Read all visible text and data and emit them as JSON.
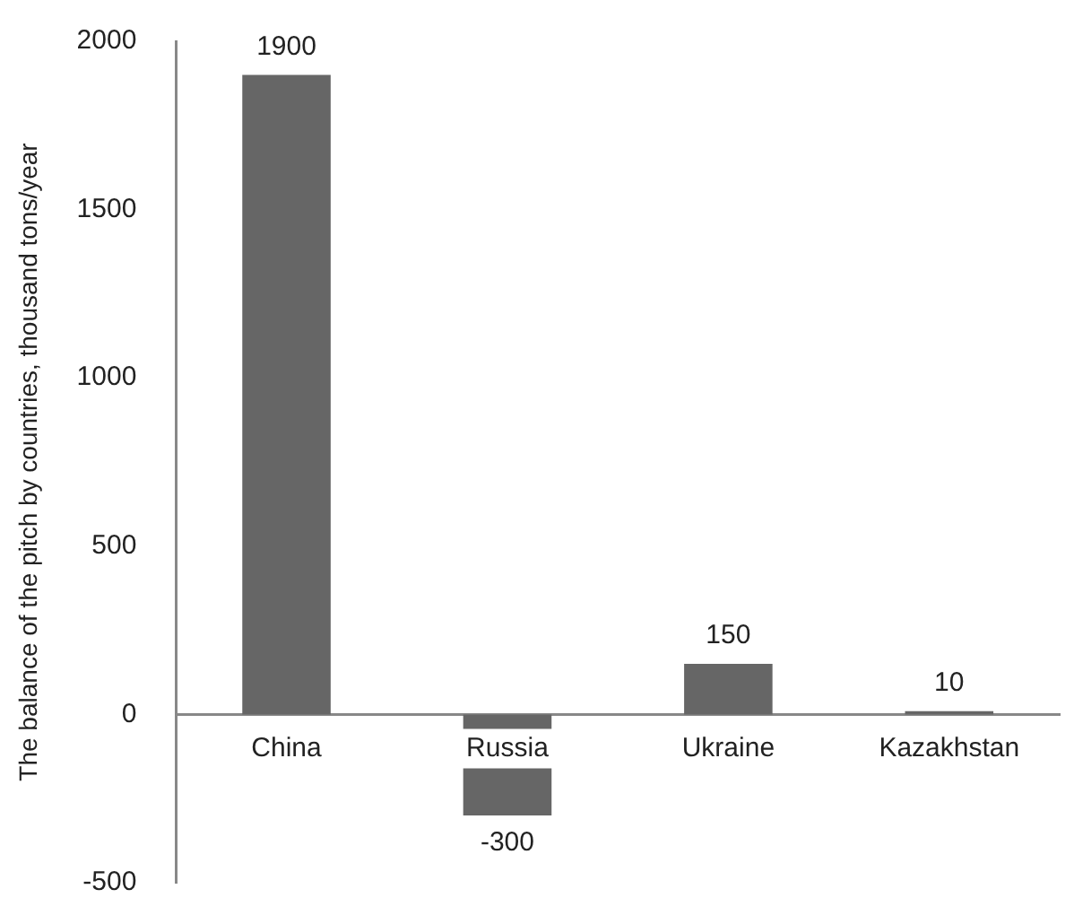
{
  "chart_data": {
    "type": "bar",
    "ylabel": "The balance of the pitch by countries, thousand tons/year",
    "categories": [
      "China",
      "Russia",
      "Ukraine",
      "Kazakhstan"
    ],
    "values": [
      1900,
      -300,
      150,
      10
    ],
    "color": "#666666",
    "ylim": [
      -500,
      2000
    ],
    "yticks": [
      -500,
      0,
      500,
      1000,
      1500,
      2000
    ],
    "grid": false,
    "legend": false,
    "data_labels": true
  }
}
